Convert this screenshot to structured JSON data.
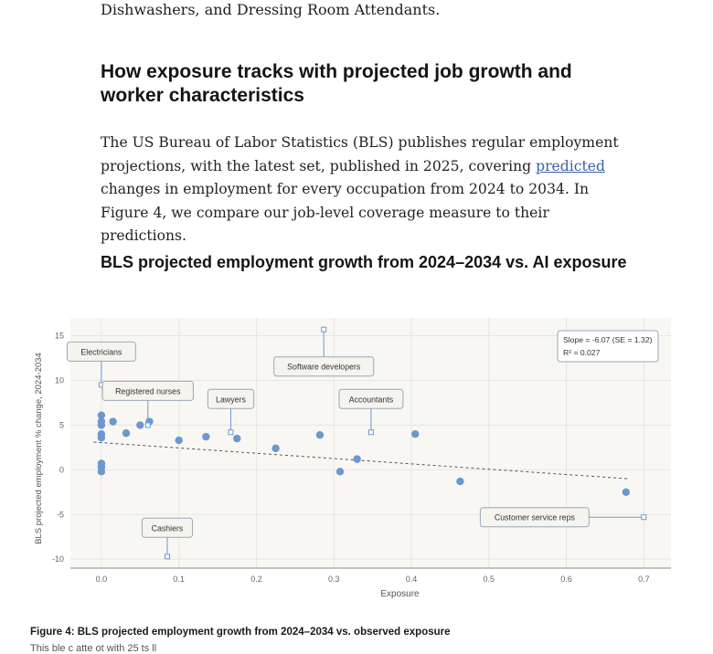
{
  "article": {
    "lead_fragment": "Dishwashers, and Dressing Room Attendants.",
    "heading": "How exposure tracks with projected job growth and worker characteristics",
    "paragraph_before_link": "The US Bureau of Labor Statistics (BLS) publishes regular employment projections, with the latest set, published in 2025, covering ",
    "paragraph_link": "predicted",
    "paragraph_after_link": " changes in employment for every occupation from 2024 to 2034. In Figure 4, we compare our job-level coverage measure to their predictions."
  },
  "figure": {
    "title": "BLS projected employment growth from 2024–2034 vs. AI exposure",
    "caption": "Figure 4: BLS projected employment growth from 2024–2034 vs. observed exposure",
    "caption_cut_text": "This    ble    c     atte    ot with 25    ts           ll                        "
  },
  "chart_data": {
    "type": "scatter",
    "xlabel": "Exposure",
    "ylabel": "BLS projected employment % change, 2024-2034",
    "xlim": [
      -0.04,
      0.735
    ],
    "ylim": [
      -11,
      17
    ],
    "xticks": [
      0.0,
      0.1,
      0.2,
      0.3,
      0.4,
      0.5,
      0.6,
      0.7
    ],
    "xtick_labels": [
      "0.0",
      "0.1",
      "0.2",
      "0.3",
      "0.4",
      "0.5",
      "0.6",
      "0.7"
    ],
    "yticks": [
      -10,
      -5,
      0,
      5,
      10,
      15
    ],
    "ytick_labels": [
      "-10",
      "-5",
      "0",
      "5",
      "10",
      "15"
    ],
    "grid": true,
    "colors": {
      "points": "#6b98cf",
      "background": "#f8f7f3",
      "trend": "#555555",
      "grid": "#e7e5df"
    },
    "trend_line": {
      "x": [
        -0.01,
        0.68
      ],
      "y": [
        3.1,
        -1.0
      ],
      "style": "dashed"
    },
    "annotation": {
      "line1": "Slope = -6.07 (SE = 1.32)",
      "line2": "R² = 0.027"
    },
    "points": [
      {
        "x": 0.0,
        "y": 6.1
      },
      {
        "x": 0.0,
        "y": 5.4
      },
      {
        "x": 0.0,
        "y": 5.0
      },
      {
        "x": 0.0,
        "y": 4.0
      },
      {
        "x": 0.0,
        "y": 3.6
      },
      {
        "x": 0.0,
        "y": 0.7
      },
      {
        "x": 0.0,
        "y": 0.3
      },
      {
        "x": 0.0,
        "y": -0.2
      },
      {
        "x": 0.015,
        "y": 5.4
      },
      {
        "x": 0.032,
        "y": 4.1
      },
      {
        "x": 0.05,
        "y": 5.0
      },
      {
        "x": 0.062,
        "y": 5.4
      },
      {
        "x": 0.082,
        "y": -5.8
      },
      {
        "x": 0.1,
        "y": 3.3
      },
      {
        "x": 0.135,
        "y": 3.7
      },
      {
        "x": 0.175,
        "y": 3.5
      },
      {
        "x": 0.225,
        "y": 2.4
      },
      {
        "x": 0.282,
        "y": 3.9
      },
      {
        "x": 0.308,
        "y": -0.2
      },
      {
        "x": 0.33,
        "y": 1.2
      },
      {
        "x": 0.405,
        "y": 4.0
      },
      {
        "x": 0.463,
        "y": -1.3
      },
      {
        "x": 0.677,
        "y": -2.5
      }
    ],
    "labels": [
      {
        "text": "Electricians",
        "x": 0.0,
        "y": 9.5
      },
      {
        "text": "Registered nurses",
        "x": 0.06,
        "y": 5.0
      },
      {
        "text": "Lawyers",
        "x": 0.167,
        "y": 4.2
      },
      {
        "text": "Software developers",
        "x": 0.287,
        "y": 15.7
      },
      {
        "text": "Accountants",
        "x": 0.348,
        "y": 4.2
      },
      {
        "text": "Cashiers",
        "x": 0.085,
        "y": -9.7
      },
      {
        "text": "Customer service reps",
        "x": 0.7,
        "y": -5.3
      }
    ]
  }
}
